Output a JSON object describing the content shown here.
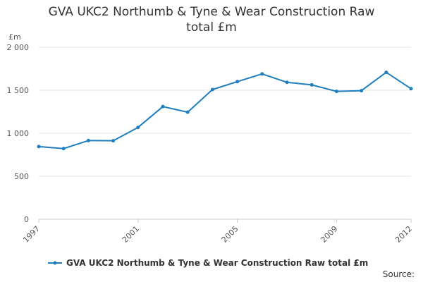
{
  "chart_data": {
    "type": "line",
    "title_line1": "GVA UKC2 Northumb & Tyne & Wear Construction Raw",
    "title_line2": "total £m",
    "ylabel": "£m",
    "ylim": [
      0,
      2000
    ],
    "yticks": [
      0,
      500,
      1000,
      1500,
      2000
    ],
    "ytick_labels": [
      "0",
      "500",
      "1 000",
      "1 500",
      "2 000"
    ],
    "xlim": [
      1997,
      2012
    ],
    "xticks": [
      "1997",
      "2001",
      "2005",
      "2009",
      "2012"
    ],
    "grid": true,
    "legend_position": "bottom-left",
    "series": [
      {
        "name": "GVA UKC2 Northumb & Tyne & Wear Construction Raw total £m",
        "color": "#1f7fbe",
        "x": [
          1997,
          1998,
          1999,
          2000,
          2001,
          2002,
          2003,
          2004,
          2005,
          2006,
          2007,
          2008,
          2009,
          2010,
          2011,
          2012
        ],
        "values": [
          845,
          822,
          915,
          913,
          1068,
          1310,
          1245,
          1508,
          1600,
          1690,
          1592,
          1562,
          1487,
          1495,
          1708,
          1518
        ]
      }
    ]
  },
  "source_label": "Source:"
}
